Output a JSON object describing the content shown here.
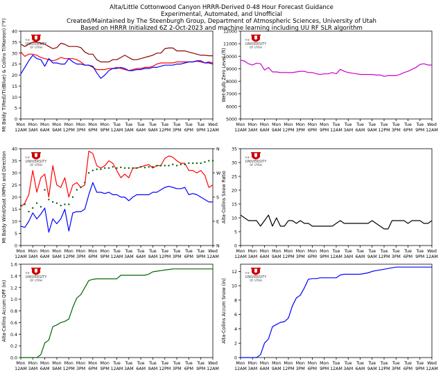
{
  "header": {
    "title_lines": [
      "Alta/Little Cottonwood Canyon HRRR-Derived 0-48 Hour Forecast Guidance",
      "Experimental, Automated, and Unofficial",
      "Created/Maintained by The Steenburgh Group, Department of Atmospheric Sciences, University of Utah",
      "Based on HRRR Initialized 6Z 2-Oct-2023 and machine learning including UU RF SLR algorithm"
    ]
  },
  "logo": {
    "line1": "THE",
    "line2": "UNIVERSITY",
    "line3": "OF UTAH",
    "color": "#cc0000"
  },
  "x_tick_labels": [
    [
      "Mon",
      "12AM"
    ],
    [
      "Mon",
      "3AM"
    ],
    [
      "Mon",
      "6AM"
    ],
    [
      "Mon",
      "9AM"
    ],
    [
      "Mon",
      "12PM"
    ],
    [
      "Mon",
      "3PM"
    ],
    [
      "Mon",
      "6PM"
    ],
    [
      "Mon",
      "9PM"
    ],
    [
      "Tue",
      "12AM"
    ],
    [
      "Tue",
      "3AM"
    ],
    [
      "Tue",
      "6AM"
    ],
    [
      "Tue",
      "9AM"
    ],
    [
      "Tue",
      "12PM"
    ],
    [
      "Tue",
      "3PM"
    ],
    [
      "Tue",
      "6PM"
    ],
    [
      "Tue",
      "9PM"
    ],
    [
      "Wed",
      "12AM"
    ]
  ],
  "chart_data": [
    {
      "id": "temp",
      "type": "line",
      "ylabel": "Mt Baldy T(Red)/T(dBlue) & Collins T(Maroon) (°F)",
      "ylim": [
        0,
        40
      ],
      "yticks": [
        0,
        5,
        10,
        15,
        20,
        25,
        30,
        35,
        40
      ],
      "x": [
        0,
        1,
        2,
        3,
        4,
        5,
        6,
        7,
        8,
        9,
        10,
        11,
        12,
        13,
        14,
        15,
        16,
        17,
        18,
        19,
        20,
        21,
        22,
        23,
        24,
        25,
        26,
        27,
        28,
        29,
        30,
        31,
        32,
        33,
        34,
        35,
        36,
        37,
        38,
        39,
        40,
        41,
        42,
        43,
        44,
        45,
        46,
        47,
        48
      ],
      "series": [
        {
          "color": "#8b0000",
          "values": [
            34,
            33,
            34,
            35,
            35,
            34.5,
            34,
            33,
            32,
            32.5,
            34.5,
            34,
            33,
            33,
            33,
            32.5,
            30.5,
            29.5,
            29.5,
            27,
            26,
            26,
            26,
            27,
            27,
            28,
            29,
            28,
            27,
            27,
            27.5,
            28,
            28.5,
            29,
            30,
            30,
            32,
            32.3,
            32.3,
            31,
            31,
            31,
            30.5,
            30,
            29.5,
            29,
            29,
            28.8,
            28.8
          ]
        },
        {
          "color": "#ff0000",
          "values": [
            30.5,
            28.5,
            29.5,
            29.5,
            29,
            28,
            27.5,
            27,
            26.5,
            27,
            28,
            27.5,
            27.5,
            27.5,
            27,
            26,
            24.5,
            24.5,
            23.5,
            22.5,
            22.5,
            22.5,
            23,
            23,
            23.5,
            23,
            22.5,
            22,
            22.5,
            23,
            23,
            23.5,
            23.5,
            24,
            25,
            25.5,
            25.5,
            25.5,
            25.5,
            26,
            26,
            26,
            26,
            26,
            26.3,
            26,
            25.5,
            26,
            25.5
          ]
        },
        {
          "color": "#0000ff",
          "values": [
            20.5,
            23.5,
            26.5,
            29,
            27.5,
            27,
            24,
            27.5,
            25.5,
            25.5,
            25,
            25,
            27.5,
            26,
            25,
            25,
            24.5,
            24.5,
            24,
            21,
            18.5,
            20,
            22,
            23,
            23,
            23.5,
            23,
            22,
            22,
            22.5,
            22.5,
            23,
            23,
            23.5,
            23.5,
            24,
            24.5,
            24.5,
            24.5,
            25,
            25,
            25.5,
            26,
            26,
            26.5,
            26.5,
            25.5,
            25.5,
            25
          ]
        }
      ]
    },
    {
      "id": "wetbulb",
      "type": "line",
      "ylabel": "Wet-Bulb Zero Level (ft)",
      "ylim": [
        5000,
        12000
      ],
      "yticks": [
        5000,
        6000,
        7000,
        8000,
        9000,
        10000,
        11000,
        12000
      ],
      "x": [
        0,
        1,
        2,
        3,
        4,
        5,
        6,
        7,
        8,
        9,
        10,
        11,
        12,
        13,
        14,
        15,
        16,
        17,
        18,
        19,
        20,
        21,
        22,
        23,
        24,
        25,
        26,
        27,
        28,
        29,
        30,
        31,
        32,
        33,
        34,
        35,
        36,
        37,
        38,
        39,
        40,
        41,
        42,
        43,
        44,
        45,
        46,
        47,
        48
      ],
      "series": [
        {
          "color": "#cc00cc",
          "values": [
            9700,
            9600,
            9400,
            9300,
            9450,
            9400,
            8900,
            9100,
            8750,
            8750,
            8700,
            8700,
            8700,
            8700,
            8750,
            8800,
            8800,
            8700,
            8700,
            8600,
            8550,
            8600,
            8600,
            8700,
            8600,
            8950,
            8800,
            8700,
            8650,
            8600,
            8550,
            8550,
            8550,
            8550,
            8500,
            8500,
            8400,
            8450,
            8450,
            8450,
            8550,
            8700,
            8800,
            8950,
            9100,
            9350,
            9400,
            9300,
            9300
          ]
        }
      ]
    },
    {
      "id": "wind",
      "type": "line",
      "ylabel": "Mt Baldy Wind/Gust (MPH) and Direction",
      "ylim": [
        0,
        40
      ],
      "yticks": [
        0,
        5,
        10,
        15,
        20,
        25,
        30,
        35,
        40
      ],
      "right_ticks": [
        "N",
        "E",
        "S",
        "W",
        "N"
      ],
      "x": [
        0,
        1,
        2,
        3,
        4,
        5,
        6,
        7,
        8,
        9,
        10,
        11,
        12,
        13,
        14,
        15,
        16,
        17,
        18,
        19,
        20,
        21,
        22,
        23,
        24,
        25,
        26,
        27,
        28,
        29,
        30,
        31,
        32,
        33,
        34,
        35,
        36,
        37,
        38,
        39,
        40,
        41,
        42,
        43,
        44,
        45,
        46,
        47,
        48
      ],
      "series": [
        {
          "name": "Gust",
          "color": "#ff0000",
          "values": [
            16,
            17.5,
            21,
            31,
            22,
            28,
            29.5,
            20,
            33,
            25,
            24,
            28,
            20,
            25,
            26,
            24,
            25,
            39,
            38,
            33,
            32,
            33,
            35,
            34,
            31,
            28,
            29.5,
            28,
            32,
            32,
            32.5,
            33,
            33.5,
            32,
            33,
            33,
            36,
            37,
            36.5,
            35,
            34,
            34,
            31,
            31,
            30,
            31,
            29,
            24,
            25
          ]
        },
        {
          "name": "Wind",
          "color": "#0000ff",
          "values": [
            8,
            7.5,
            10,
            13.5,
            11,
            13,
            15.5,
            5.5,
            11,
            9,
            11,
            15,
            6,
            13.5,
            14,
            14,
            15,
            21,
            26,
            22,
            22,
            21.5,
            22,
            21,
            21,
            20,
            20,
            18.5,
            20,
            21,
            21,
            21,
            21,
            22,
            22,
            23,
            24,
            24.5,
            24,
            23.5,
            23.5,
            24,
            21,
            21.5,
            21,
            20,
            19,
            18,
            18
          ]
        },
        {
          "name": "Direction",
          "color": "#006400",
          "marker": "dot",
          "values": [
            16.5,
            17,
            14,
            15.5,
            17.5,
            16,
            23,
            19,
            18,
            17.5,
            16.5,
            17,
            17,
            20,
            23,
            24,
            26,
            30,
            31,
            31.5,
            31.5,
            32,
            32,
            32.5,
            32,
            32.3,
            32,
            32,
            32,
            32,
            32.5,
            32.2,
            32.5,
            32.5,
            33,
            33,
            33,
            33,
            33.5,
            33,
            33.5,
            33.5,
            34,
            34,
            34,
            34,
            34.5,
            35,
            35
          ]
        }
      ]
    },
    {
      "id": "slr",
      "type": "line",
      "ylabel": "Alta-Collins Snow Ratio",
      "ylim": [
        0,
        35
      ],
      "yticks": [
        0,
        5,
        10,
        15,
        20,
        25,
        30,
        35
      ],
      "x": [
        0,
        1,
        2,
        3,
        4,
        5,
        6,
        7,
        8,
        9,
        10,
        11,
        12,
        13,
        14,
        15,
        16,
        17,
        18,
        19,
        20,
        21,
        22,
        23,
        24,
        25,
        26,
        27,
        28,
        29,
        30,
        31,
        32,
        33,
        34,
        35,
        36,
        37,
        38,
        39,
        40,
        41,
        42,
        43,
        44,
        45,
        46,
        47,
        48
      ],
      "series": [
        {
          "color": "#000000",
          "values": [
            11,
            10,
            9,
            9,
            9,
            7,
            9,
            11,
            7,
            10,
            7,
            7,
            9,
            9,
            8,
            9,
            8,
            8,
            7,
            7,
            7,
            7,
            7,
            7,
            8,
            9,
            8,
            8,
            8,
            8,
            8,
            8,
            8,
            9,
            8,
            7,
            6,
            6,
            9,
            9,
            9,
            9,
            8,
            9,
            9,
            9,
            8,
            8,
            9
          ]
        }
      ]
    },
    {
      "id": "qpf",
      "type": "line",
      "ylabel": "Alta-Collins Accum QPF (in)",
      "ylim": [
        0,
        1.6
      ],
      "yticks": [
        0.0,
        0.2,
        0.4,
        0.6,
        0.8,
        1.0,
        1.2,
        1.4,
        1.6
      ],
      "x": [
        0,
        1,
        2,
        3,
        4,
        5,
        6,
        7,
        8,
        9,
        10,
        11,
        12,
        13,
        14,
        15,
        16,
        17,
        18,
        19,
        20,
        21,
        22,
        23,
        24,
        25,
        26,
        27,
        28,
        29,
        30,
        31,
        32,
        33,
        34,
        35,
        36,
        37,
        38,
        39,
        40,
        41,
        42,
        43,
        44,
        45,
        46,
        47,
        48
      ],
      "series": [
        {
          "color": "#006400",
          "values": [
            0,
            0,
            0,
            0,
            0,
            0.05,
            0.25,
            0.3,
            0.53,
            0.56,
            0.6,
            0.62,
            0.66,
            0.86,
            1.02,
            1.08,
            1.2,
            1.32,
            1.34,
            1.35,
            1.35,
            1.35,
            1.35,
            1.35,
            1.35,
            1.41,
            1.41,
            1.41,
            1.41,
            1.41,
            1.41,
            1.41,
            1.43,
            1.47,
            1.48,
            1.49,
            1.5,
            1.51,
            1.52,
            1.52,
            1.52,
            1.52,
            1.52,
            1.52,
            1.52,
            1.52,
            1.52,
            1.52,
            1.52
          ]
        }
      ]
    },
    {
      "id": "snow",
      "type": "line",
      "ylabel": "Alta-Collins Accum Snow (in)",
      "ylim": [
        0,
        13
      ],
      "yticks": [
        0,
        2,
        4,
        6,
        8,
        10,
        12
      ],
      "x": [
        0,
        1,
        2,
        3,
        4,
        5,
        6,
        7,
        8,
        9,
        10,
        11,
        12,
        13,
        14,
        15,
        16,
        17,
        18,
        19,
        20,
        21,
        22,
        23,
        24,
        25,
        26,
        27,
        28,
        29,
        30,
        31,
        32,
        33,
        34,
        35,
        36,
        37,
        38,
        39,
        40,
        41,
        42,
        43,
        44,
        45,
        46,
        47,
        48
      ],
      "series": [
        {
          "color": "#0000ff",
          "values": [
            0,
            0,
            0,
            0,
            0,
            0.4,
            2,
            2.6,
            4.3,
            4.6,
            4.9,
            5,
            5.5,
            7.2,
            8.3,
            8.7,
            9.7,
            10.9,
            11,
            11,
            11.1,
            11.1,
            11.1,
            11.1,
            11.1,
            11.5,
            11.6,
            11.6,
            11.6,
            11.6,
            11.6,
            11.7,
            11.8,
            12,
            12.1,
            12.2,
            12.3,
            12.4,
            12.5,
            12.6,
            12.6,
            12.6,
            12.6,
            12.6,
            12.6,
            12.6,
            12.6,
            12.6,
            12.6
          ]
        }
      ]
    }
  ]
}
